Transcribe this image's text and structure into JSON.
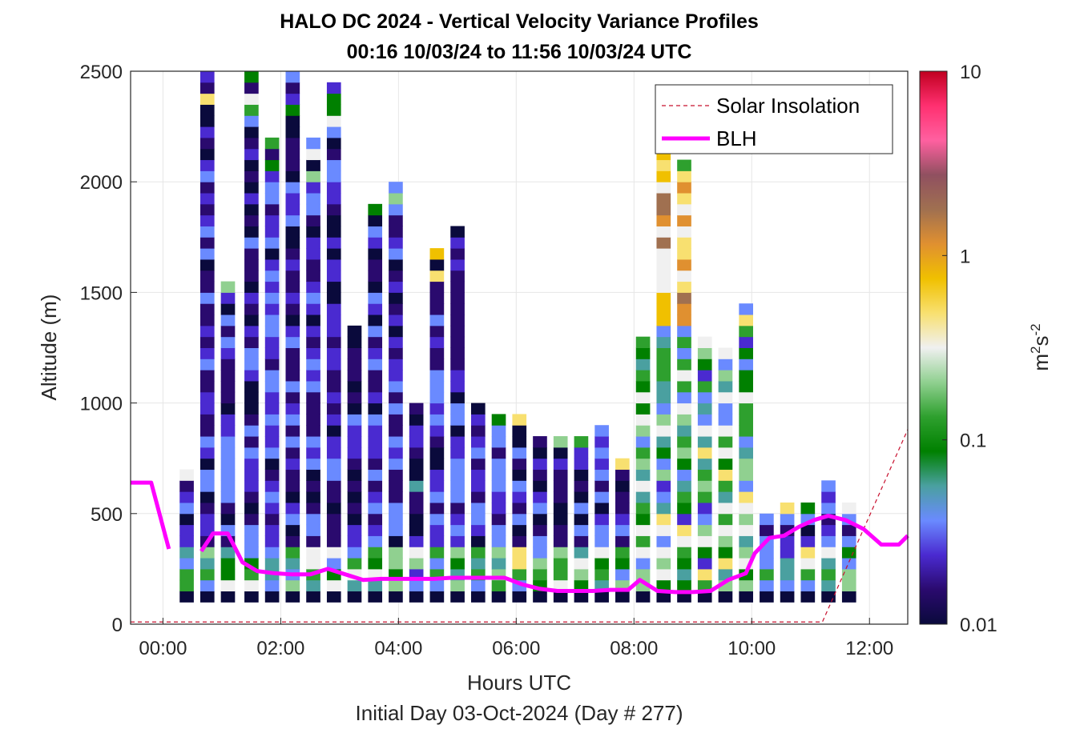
{
  "chart_data": {
    "type": "heatmap",
    "title": "HALO DC 2024 - Vertical Velocity Variance Profiles",
    "subtitle": "00:16 10/03/24 to 11:56 10/03/24  UTC",
    "xlabel": "Hours UTC",
    "xlabel2": "Initial Day 03-Oct-2024 (Day # 277)",
    "ylabel": "Altitude (m)",
    "xlim_hours": [
      -0.55,
      12.65
    ],
    "ylim": [
      0,
      2500
    ],
    "xticks": [
      0,
      2,
      4,
      6,
      8,
      10,
      12
    ],
    "xtick_labels": [
      "00:00",
      "02:00",
      "04:00",
      "06:00",
      "08:00",
      "10:00",
      "12:00"
    ],
    "yticks": [
      0,
      500,
      1000,
      1500,
      2000,
      2500
    ],
    "ytick_labels": [
      "0",
      "500",
      "1000",
      "1500",
      "2000",
      "2500"
    ],
    "grid": true,
    "legend": {
      "placement": "top-right",
      "entries": [
        {
          "label": "Solar Insolation",
          "color": "#c8102e",
          "style": "dashed"
        },
        {
          "label": "BLH",
          "color": "#ff00ff",
          "style": "solid"
        }
      ]
    },
    "colorbar": {
      "scale": "log",
      "range": [
        0.01,
        10
      ],
      "tick_values": [
        0.01,
        0.1,
        1,
        10
      ],
      "tick_labels": [
        "0.01",
        "0.1",
        "1",
        "10"
      ],
      "label_base": "m",
      "label_exp1": "2",
      "label_mid": "s",
      "label_exp2": "-2",
      "colors": [
        "#0a0a3c",
        "#2a0a6e",
        "#4a2ad0",
        "#6a8aff",
        "#4aa0a0",
        "#008000",
        "#2ea02e",
        "#90d090",
        "#f0f0f0",
        "#f8e070",
        "#f0c000",
        "#e09030",
        "#a07050",
        "#905060",
        "#ff60a0",
        "#ff3070",
        "#c00020"
      ]
    },
    "bin_width_hours": 0.2333,
    "bin_height_m": 50,
    "columns": [
      {
        "t": 0.4,
        "top": 700
      },
      {
        "t": 0.75,
        "top": 2500
      },
      {
        "t": 1.1,
        "top": 1550
      },
      {
        "t": 1.5,
        "top": 2500
      },
      {
        "t": 1.85,
        "top": 2200
      },
      {
        "t": 2.2,
        "top": 2500
      },
      {
        "t": 2.55,
        "top": 2200
      },
      {
        "t": 2.9,
        "top": 2450
      },
      {
        "t": 3.25,
        "top": 1350
      },
      {
        "t": 3.6,
        "top": 1900
      },
      {
        "t": 3.95,
        "top": 2000
      },
      {
        "t": 4.3,
        "top": 1000
      },
      {
        "t": 4.65,
        "top": 1700
      },
      {
        "t": 5.0,
        "top": 1800
      },
      {
        "t": 5.35,
        "top": 1000
      },
      {
        "t": 5.7,
        "top": 950
      },
      {
        "t": 6.05,
        "top": 950
      },
      {
        "t": 6.4,
        "top": 850
      },
      {
        "t": 6.75,
        "top": 850
      },
      {
        "t": 7.1,
        "top": 850
      },
      {
        "t": 7.45,
        "top": 900
      },
      {
        "t": 7.8,
        "top": 750
      },
      {
        "t": 8.15,
        "top": 1300
      },
      {
        "t": 8.5,
        "top": 2200
      },
      {
        "t": 8.85,
        "top": 2100
      },
      {
        "t": 9.2,
        "top": 1300
      },
      {
        "t": 9.55,
        "top": 1250
      },
      {
        "t": 9.9,
        "top": 1450
      },
      {
        "t": 10.25,
        "top": 500
      },
      {
        "t": 10.6,
        "top": 550
      },
      {
        "t": 10.95,
        "top": 550
      },
      {
        "t": 11.3,
        "top": 650
      },
      {
        "t": 11.65,
        "top": 550
      }
    ],
    "blh": {
      "x": [
        -0.55,
        -0.2,
        0.1,
        0.4,
        0.65,
        0.85,
        1.1,
        1.35,
        1.6,
        1.9,
        2.2,
        2.5,
        2.8,
        3.1,
        3.4,
        3.7,
        4.0,
        4.3,
        4.6,
        4.9,
        5.2,
        5.5,
        5.8,
        6.1,
        6.4,
        6.7,
        7.0,
        7.3,
        7.6,
        7.9,
        8.1,
        8.4,
        8.7,
        9.0,
        9.3,
        9.6,
        9.9,
        10.05,
        10.3,
        10.55,
        10.8,
        11.05,
        11.3,
        11.6,
        11.9,
        12.2,
        12.5,
        12.65
      ],
      "y": [
        640,
        640,
        340,
        null,
        330,
        410,
        410,
        280,
        240,
        230,
        225,
        225,
        250,
        225,
        200,
        205,
        205,
        205,
        205,
        210,
        210,
        210,
        210,
        180,
        160,
        150,
        150,
        150,
        155,
        155,
        200,
        150,
        145,
        145,
        150,
        200,
        230,
        320,
        390,
        400,
        440,
        470,
        490,
        470,
        430,
        360,
        360,
        400
      ]
    },
    "solar": {
      "x": [
        -0.55,
        11.2,
        12.65
      ],
      "y": [
        10,
        10,
        880
      ]
    }
  }
}
